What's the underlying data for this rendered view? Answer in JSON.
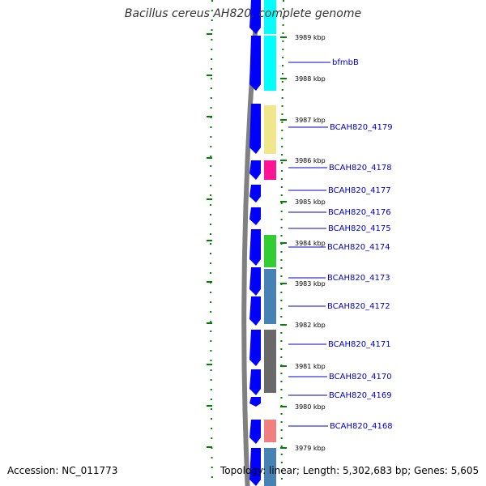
{
  "title": "Bacillus cereus AH820, complete genome",
  "accession": "Accession: NC_011773",
  "summary": "Topology: linear; Length: 5,302,683 bp; Genes: 5,605",
  "colors": {
    "backbone": "#808080",
    "cds_forward": "#0000ff",
    "gene_label": "#0000cc",
    "tick": "#008000"
  },
  "ticks": [
    {
      "label": "3989 kbp"
    },
    {
      "label": "3988 kbp"
    },
    {
      "label": "3987 kbp"
    },
    {
      "label": "3986 kbp"
    },
    {
      "label": "3985 kbp"
    },
    {
      "label": "3984 kbp"
    },
    {
      "label": "3983 kbp"
    },
    {
      "label": "3982 kbp"
    },
    {
      "label": "3981 kbp"
    },
    {
      "label": "3980 kbp"
    },
    {
      "label": "3979 kbp"
    }
  ],
  "genes": [
    {
      "label": "bfmbB",
      "color": "#00ffff"
    },
    {
      "label": "BCAH820_4179",
      "color": "#f0e68c"
    },
    {
      "label": "BCAH820_4178",
      "color": "#ff1493"
    },
    {
      "label": "BCAH820_4177",
      "color": "#ffffff"
    },
    {
      "label": "BCAH820_4176",
      "color": "#ffffff"
    },
    {
      "label": "BCAH820_4175",
      "color": "#ffffff"
    },
    {
      "label": "BCAH820_4174",
      "color": "#32cd32"
    },
    {
      "label": "BCAH820_4173",
      "color": "#4682b4"
    },
    {
      "label": "BCAH820_4172",
      "color": "#4682b4"
    },
    {
      "label": "BCAH820_4171",
      "color": "#696969"
    },
    {
      "label": "BCAH820_4170",
      "color": "#696969"
    },
    {
      "label": "BCAH820_4169",
      "color": "#ffffff"
    },
    {
      "label": "BCAH820_4168",
      "color": "#f08080"
    }
  ]
}
